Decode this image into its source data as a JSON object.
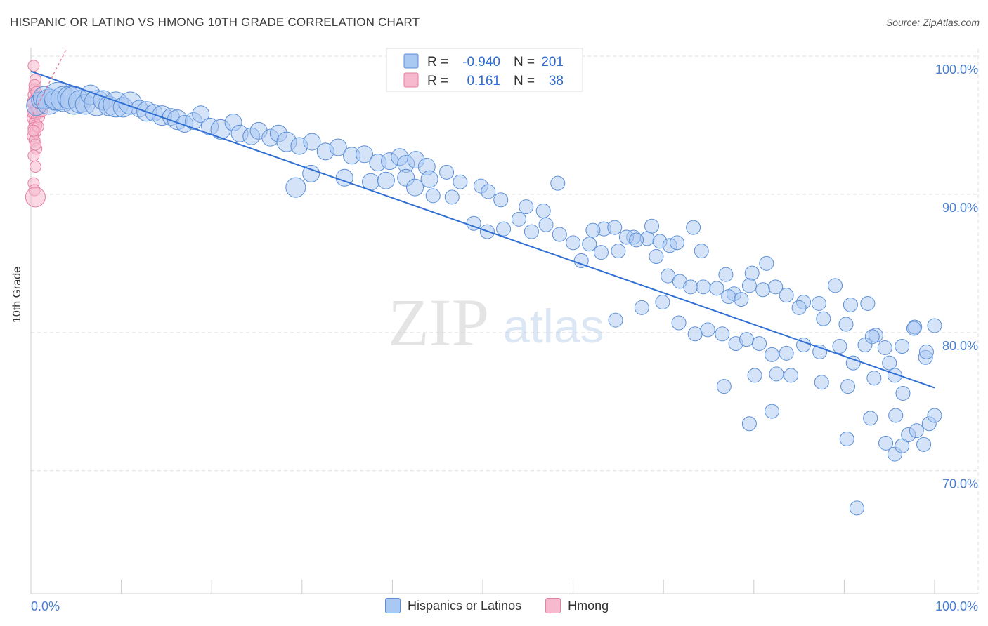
{
  "title": "HISPANIC OR LATINO VS HMONG 10TH GRADE CORRELATION CHART",
  "source": "Source: ZipAtlas.com",
  "watermark": {
    "zip": "ZIP",
    "atlas": "atlas"
  },
  "colors": {
    "blue_fill": "#a9c8f2",
    "blue_stroke": "#5b8fd8",
    "blue_line": "#2f6fd3",
    "pink_fill": "#f6b9cd",
    "pink_stroke": "#e77fa2",
    "pink_line": "#e07097",
    "grid": "#dddddd",
    "tick_text": "#4a7fd0"
  },
  "legend_box": {
    "rows": [
      {
        "r_label": "R =",
        "r_value": "-0.940",
        "n_label": "N =",
        "n_value": "201",
        "color": "blue"
      },
      {
        "r_label": "R =",
        "r_value": "0.161",
        "n_label": "N =",
        "n_value": "38",
        "color": "pink"
      }
    ]
  },
  "bottom_legend": [
    {
      "label": "Hispanics or Latinos",
      "color": "blue"
    },
    {
      "label": "Hmong",
      "color": "pink"
    }
  ],
  "chart_data": {
    "type": "scatter",
    "title": "HISPANIC OR LATINO VS HMONG 10TH GRADE CORRELATION CHART",
    "xlabel": "",
    "ylabel": "10th Grade",
    "xlim": [
      0,
      100
    ],
    "ylim": [
      61,
      101
    ],
    "x_tick_labels": [
      "0.0%",
      "100.0%"
    ],
    "y_ticks": [
      70,
      80,
      90,
      100
    ],
    "y_tick_labels": [
      "70.0%",
      "80.0%",
      "90.0%",
      "100.0%"
    ],
    "grid": true,
    "legend_position": "top-center",
    "series": [
      {
        "name": "Hispanics or Latinos",
        "color": "blue",
        "r": -0.94,
        "n": 201,
        "trend": {
          "x": [
            0,
            100
          ],
          "y": [
            98.9,
            76.0
          ]
        },
        "points": [
          [
            0.6,
            96.4,
            14
          ],
          [
            1.0,
            96.8,
            12
          ],
          [
            1.5,
            97.0,
            16
          ],
          [
            2.0,
            96.7,
            18
          ],
          [
            2.6,
            96.8,
            14
          ],
          [
            3.0,
            97.1,
            20
          ],
          [
            3.6,
            96.9,
            18
          ],
          [
            4.2,
            97.0,
            16
          ],
          [
            4.8,
            96.8,
            20
          ],
          [
            5.4,
            96.7,
            16
          ],
          [
            6.0,
            96.5,
            14
          ],
          [
            6.6,
            97.2,
            14
          ],
          [
            7.3,
            96.6,
            18
          ],
          [
            8.0,
            96.8,
            14
          ],
          [
            8.6,
            96.4,
            14
          ],
          [
            9.4,
            96.5,
            18
          ],
          [
            10.2,
            96.3,
            14
          ],
          [
            11.0,
            96.6,
            16
          ],
          [
            12.0,
            96.2,
            12
          ],
          [
            12.8,
            96.0,
            14
          ],
          [
            13.6,
            95.9,
            12
          ],
          [
            14.5,
            95.7,
            14
          ],
          [
            15.5,
            95.6,
            12
          ],
          [
            16.2,
            95.4,
            14
          ],
          [
            17.0,
            95.1,
            12
          ],
          [
            18.0,
            95.3,
            12
          ],
          [
            18.8,
            95.8,
            12
          ],
          [
            19.8,
            94.9,
            12
          ],
          [
            21.0,
            94.7,
            14
          ],
          [
            22.4,
            95.2,
            12
          ],
          [
            23.1,
            94.4,
            12
          ],
          [
            24.4,
            94.2,
            12
          ],
          [
            25.2,
            94.6,
            12
          ],
          [
            26.5,
            94.1,
            12
          ],
          [
            27.4,
            94.4,
            12
          ],
          [
            28.3,
            93.8,
            14
          ],
          [
            29.7,
            93.5,
            12
          ],
          [
            31.1,
            93.8,
            12
          ],
          [
            32.6,
            93.1,
            12
          ],
          [
            34.0,
            93.4,
            12
          ],
          [
            35.5,
            92.8,
            12
          ],
          [
            36.9,
            92.9,
            12
          ],
          [
            38.4,
            92.3,
            12
          ],
          [
            39.7,
            92.4,
            12
          ],
          [
            40.8,
            92.7,
            12
          ],
          [
            41.5,
            92.2,
            12
          ],
          [
            42.6,
            92.5,
            12
          ],
          [
            43.8,
            92.0,
            12
          ],
          [
            29.3,
            90.5,
            14
          ],
          [
            31.0,
            91.5,
            12
          ],
          [
            34.7,
            91.2,
            12
          ],
          [
            37.6,
            90.9,
            12
          ],
          [
            39.3,
            91.0,
            12
          ],
          [
            41.5,
            91.2,
            12
          ],
          [
            42.5,
            90.5,
            12
          ],
          [
            44.1,
            91.1,
            12
          ],
          [
            46.0,
            91.6,
            10
          ],
          [
            47.5,
            90.9,
            10
          ],
          [
            49.8,
            90.6,
            10
          ],
          [
            50.6,
            90.2,
            10
          ],
          [
            52.0,
            89.6,
            10
          ],
          [
            54.8,
            89.1,
            10
          ],
          [
            56.7,
            88.8,
            10
          ],
          [
            58.3,
            90.8,
            10
          ],
          [
            44.5,
            89.9,
            10
          ],
          [
            46.6,
            89.8,
            10
          ],
          [
            49.0,
            87.9,
            10
          ],
          [
            50.5,
            87.3,
            10
          ],
          [
            52.3,
            87.5,
            10
          ],
          [
            54.0,
            88.2,
            10
          ],
          [
            55.4,
            87.3,
            10
          ],
          [
            57.0,
            87.8,
            10
          ],
          [
            58.5,
            87.1,
            10
          ],
          [
            60.0,
            86.5,
            10
          ],
          [
            61.8,
            86.4,
            10
          ],
          [
            63.4,
            87.5,
            10
          ],
          [
            65.0,
            85.9,
            10
          ],
          [
            66.7,
            86.9,
            10
          ],
          [
            68.2,
            86.8,
            10
          ],
          [
            69.2,
            85.5,
            10
          ],
          [
            60.9,
            85.2,
            10
          ],
          [
            62.2,
            87.4,
            10
          ],
          [
            63.1,
            85.8,
            10
          ],
          [
            64.6,
            87.6,
            10
          ],
          [
            65.9,
            86.9,
            10
          ],
          [
            67.0,
            86.7,
            10
          ],
          [
            68.7,
            87.7,
            10
          ],
          [
            69.6,
            86.6,
            10
          ],
          [
            70.7,
            86.3,
            10
          ],
          [
            71.5,
            86.5,
            10
          ],
          [
            73.3,
            87.6,
            10
          ],
          [
            74.2,
            85.9,
            10
          ],
          [
            76.9,
            84.2,
            10
          ],
          [
            77.8,
            82.8,
            10
          ],
          [
            79.8,
            84.3,
            10
          ],
          [
            81.4,
            85.0,
            10
          ],
          [
            70.5,
            84.1,
            10
          ],
          [
            71.8,
            83.7,
            10
          ],
          [
            73.0,
            83.3,
            10
          ],
          [
            74.4,
            83.3,
            10
          ],
          [
            75.9,
            83.2,
            10
          ],
          [
            77.2,
            82.6,
            10
          ],
          [
            78.6,
            82.4,
            10
          ],
          [
            79.5,
            83.4,
            10
          ],
          [
            81.0,
            83.1,
            10
          ],
          [
            82.4,
            83.3,
            10
          ],
          [
            83.6,
            82.7,
            10
          ],
          [
            85.5,
            82.2,
            10
          ],
          [
            87.2,
            82.1,
            10
          ],
          [
            89.0,
            83.4,
            10
          ],
          [
            90.7,
            82.0,
            10
          ],
          [
            92.6,
            82.1,
            10
          ],
          [
            64.7,
            80.9,
            10
          ],
          [
            67.6,
            81.8,
            10
          ],
          [
            69.9,
            82.2,
            10
          ],
          [
            71.7,
            80.7,
            10
          ],
          [
            73.5,
            79.9,
            10
          ],
          [
            74.9,
            80.2,
            10
          ],
          [
            76.5,
            79.9,
            10
          ],
          [
            78.0,
            79.2,
            10
          ],
          [
            79.2,
            79.5,
            10
          ],
          [
            80.6,
            79.2,
            10
          ],
          [
            82.0,
            78.4,
            10
          ],
          [
            83.6,
            78.5,
            10
          ],
          [
            85.5,
            79.1,
            10
          ],
          [
            87.3,
            78.6,
            10
          ],
          [
            89.5,
            79.0,
            10
          ],
          [
            91.0,
            77.8,
            10
          ],
          [
            92.3,
            79.1,
            10
          ],
          [
            93.5,
            79.8,
            10
          ],
          [
            95.0,
            77.8,
            10
          ],
          [
            96.4,
            79.0,
            10
          ],
          [
            97.8,
            80.4,
            10
          ],
          [
            99.0,
            78.2,
            10
          ],
          [
            100.0,
            80.5,
            10
          ],
          [
            85.0,
            81.8,
            10
          ],
          [
            87.7,
            81.0,
            10
          ],
          [
            90.2,
            80.6,
            10
          ],
          [
            93.1,
            79.7,
            10
          ],
          [
            94.5,
            78.9,
            10
          ],
          [
            95.6,
            76.9,
            10
          ],
          [
            97.7,
            80.3,
            10
          ],
          [
            99.1,
            78.6,
            10
          ],
          [
            76.7,
            76.1,
            10
          ],
          [
            80.1,
            76.9,
            10
          ],
          [
            82.5,
            77.0,
            10
          ],
          [
            84.1,
            76.9,
            10
          ],
          [
            87.5,
            76.4,
            10
          ],
          [
            90.4,
            76.1,
            10
          ],
          [
            93.3,
            76.7,
            10
          ],
          [
            96.5,
            75.6,
            10
          ],
          [
            94.6,
            72.0,
            10
          ],
          [
            95.6,
            71.2,
            10
          ],
          [
            96.4,
            71.8,
            10
          ],
          [
            97.1,
            72.6,
            10
          ],
          [
            98.0,
            72.9,
            10
          ],
          [
            98.8,
            71.9,
            10
          ],
          [
            99.4,
            73.4,
            10
          ],
          [
            100.0,
            74.0,
            10
          ],
          [
            79.5,
            73.4,
            10
          ],
          [
            82.0,
            74.3,
            10
          ],
          [
            90.3,
            72.3,
            10
          ],
          [
            92.9,
            73.8,
            10
          ],
          [
            95.7,
            74.0,
            10
          ],
          [
            91.4,
            67.3,
            10
          ]
        ]
      },
      {
        "name": "Hmong",
        "color": "pink",
        "r": 0.161,
        "n": 38,
        "trend": {
          "x": [
            0,
            4
          ],
          "y": [
            95.5,
            100.6
          ]
        },
        "points": [
          [
            0.3,
            99.3,
            8
          ],
          [
            0.5,
            98.3,
            8
          ],
          [
            0.4,
            97.6,
            8
          ],
          [
            0.3,
            97.2,
            8
          ],
          [
            0.6,
            97.0,
            8
          ],
          [
            0.2,
            96.7,
            8
          ],
          [
            0.4,
            96.4,
            8
          ],
          [
            0.6,
            96.2,
            8
          ],
          [
            0.3,
            96.0,
            8
          ],
          [
            0.8,
            95.9,
            8
          ],
          [
            0.5,
            95.7,
            8
          ],
          [
            0.2,
            95.5,
            8
          ],
          [
            0.4,
            95.2,
            8
          ],
          [
            0.6,
            95.0,
            8
          ],
          [
            0.3,
            94.8,
            8
          ],
          [
            0.5,
            94.5,
            8
          ],
          [
            0.2,
            94.2,
            8
          ],
          [
            0.4,
            93.9,
            8
          ],
          [
            0.6,
            93.3,
            8
          ],
          [
            0.3,
            92.8,
            8
          ],
          [
            0.5,
            92.0,
            8
          ],
          [
            0.3,
            90.8,
            8
          ],
          [
            0.4,
            90.3,
            8
          ],
          [
            0.5,
            89.8,
            14
          ],
          [
            0.2,
            96.6,
            8
          ],
          [
            0.7,
            96.8,
            8
          ],
          [
            1.0,
            96.4,
            8
          ],
          [
            1.3,
            96.9,
            8
          ],
          [
            0.9,
            95.6,
            8
          ],
          [
            1.2,
            96.0,
            8
          ],
          [
            0.8,
            94.9,
            8
          ],
          [
            1.5,
            96.5,
            8
          ],
          [
            0.2,
            95.9,
            8
          ],
          [
            0.4,
            97.9,
            8
          ],
          [
            0.6,
            97.4,
            8
          ],
          [
            0.3,
            94.6,
            8
          ],
          [
            0.5,
            93.6,
            8
          ],
          [
            0.7,
            96.1,
            8
          ]
        ]
      }
    ]
  }
}
